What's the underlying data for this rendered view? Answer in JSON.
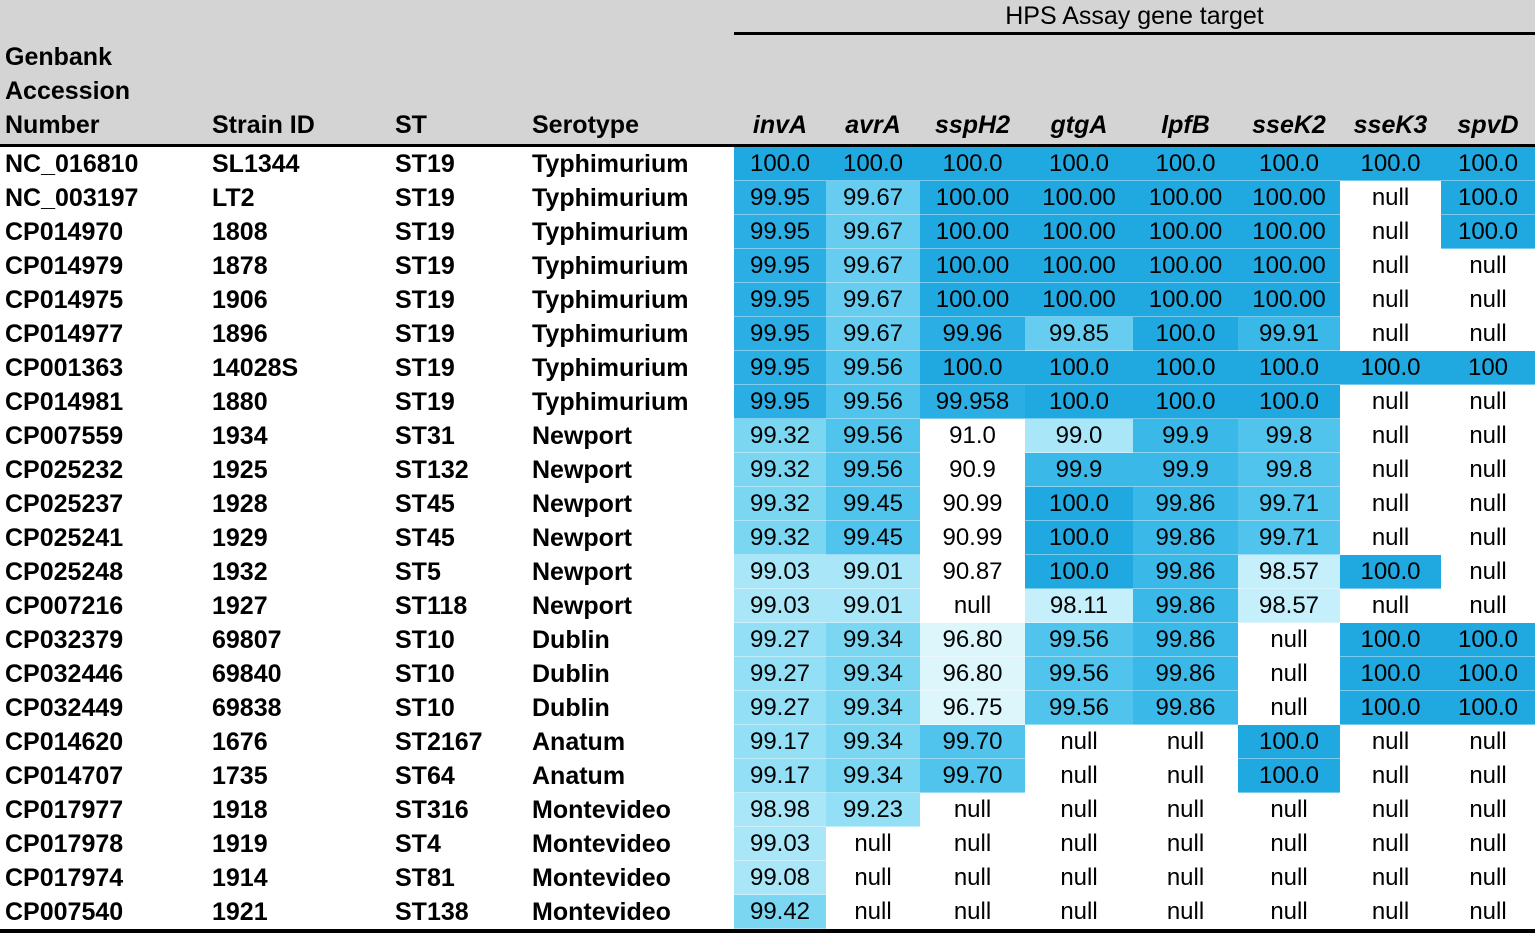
{
  "title": "HPS Assay gene target",
  "columns": {
    "accession": "Genbank Accession Number",
    "strain": "Strain ID",
    "st": "ST",
    "serotype": "Serotype"
  },
  "gene_targets": [
    "invA",
    "avrA",
    "sspH2",
    "gtgA",
    "lpfB",
    "sseK2",
    "sseK3",
    "spvD"
  ],
  "heatmap_palette": {
    "w": "#FFFFFF",
    "c1": "#DDF6FC",
    "c2": "#C4EFFB",
    "c3": "#A9E6F8",
    "c4": "#93DFF5",
    "c5": "#7BD6F2",
    "c6": "#67CDF0",
    "c7": "#50C4EC",
    "c8": "#3AB8E8",
    "c9": "#2BAEE4",
    "c10": "#20A8E1"
  },
  "header_bg": "#D4D4D4",
  "rows": [
    {
      "accession": "NC_016810",
      "strain": "SL1344",
      "st": "ST19",
      "serotype": "Typhimurium",
      "values": [
        [
          "100.0",
          "c10"
        ],
        [
          "100.0",
          "c10"
        ],
        [
          "100.0",
          "c10"
        ],
        [
          "100.0",
          "c10"
        ],
        [
          "100.0",
          "c10"
        ],
        [
          "100.0",
          "c10"
        ],
        [
          "100.0",
          "c10"
        ],
        [
          "100.0",
          "c10"
        ]
      ]
    },
    {
      "accession": "NC_003197",
      "strain": "LT2",
      "st": "ST19",
      "serotype": "Typhimurium",
      "values": [
        [
          "99.95",
          "c9"
        ],
        [
          "99.67",
          "c6"
        ],
        [
          "100.00",
          "c10"
        ],
        [
          "100.00",
          "c10"
        ],
        [
          "100.00",
          "c10"
        ],
        [
          "100.00",
          "c10"
        ],
        [
          "null",
          "w"
        ],
        [
          "100.0",
          "c10"
        ]
      ]
    },
    {
      "accession": "CP014970",
      "strain": "1808",
      "st": "ST19",
      "serotype": "Typhimurium",
      "values": [
        [
          "99.95",
          "c9"
        ],
        [
          "99.67",
          "c6"
        ],
        [
          "100.00",
          "c10"
        ],
        [
          "100.00",
          "c10"
        ],
        [
          "100.00",
          "c10"
        ],
        [
          "100.00",
          "c10"
        ],
        [
          "null",
          "w"
        ],
        [
          "100.0",
          "c10"
        ]
      ]
    },
    {
      "accession": "CP014979",
      "strain": "1878",
      "st": "ST19",
      "serotype": "Typhimurium",
      "values": [
        [
          "99.95",
          "c9"
        ],
        [
          "99.67",
          "c6"
        ],
        [
          "100.00",
          "c10"
        ],
        [
          "100.00",
          "c10"
        ],
        [
          "100.00",
          "c10"
        ],
        [
          "100.00",
          "c10"
        ],
        [
          "null",
          "w"
        ],
        [
          "null",
          "w"
        ]
      ]
    },
    {
      "accession": "CP014975",
      "strain": "1906",
      "st": "ST19",
      "serotype": "Typhimurium",
      "values": [
        [
          "99.95",
          "c9"
        ],
        [
          "99.67",
          "c6"
        ],
        [
          "100.00",
          "c10"
        ],
        [
          "100.00",
          "c10"
        ],
        [
          "100.00",
          "c10"
        ],
        [
          "100.00",
          "c10"
        ],
        [
          "null",
          "w"
        ],
        [
          "null",
          "w"
        ]
      ]
    },
    {
      "accession": "CP014977",
      "strain": "1896",
      "st": "ST19",
      "serotype": "Typhimurium",
      "values": [
        [
          "99.95",
          "c9"
        ],
        [
          "99.67",
          "c6"
        ],
        [
          "99.96",
          "c9"
        ],
        [
          "99.85",
          "c6"
        ],
        [
          "100.0",
          "c10"
        ],
        [
          "99.91",
          "c8"
        ],
        [
          "null",
          "w"
        ],
        [
          "null",
          "w"
        ]
      ]
    },
    {
      "accession": "CP001363",
      "strain": "14028S",
      "st": "ST19",
      "serotype": "Typhimurium",
      "values": [
        [
          "99.95",
          "c9"
        ],
        [
          "99.56",
          "c7"
        ],
        [
          "100.0",
          "c10"
        ],
        [
          "100.0",
          "c10"
        ],
        [
          "100.0",
          "c10"
        ],
        [
          "100.0",
          "c10"
        ],
        [
          "100.0",
          "c10"
        ],
        [
          "100",
          "c10"
        ]
      ]
    },
    {
      "accession": "CP014981",
      "strain": "1880",
      "st": "ST19",
      "serotype": "Typhimurium",
      "values": [
        [
          "99.95",
          "c9"
        ],
        [
          "99.56",
          "c7"
        ],
        [
          "99.958",
          "c9"
        ],
        [
          "100.0",
          "c10"
        ],
        [
          "100.0",
          "c10"
        ],
        [
          "100.0",
          "c10"
        ],
        [
          "null",
          "w"
        ],
        [
          "null",
          "w"
        ]
      ]
    },
    {
      "accession": "CP007559",
      "strain": "1934",
      "st": "ST31",
      "serotype": "Newport",
      "values": [
        [
          "99.32",
          "c5"
        ],
        [
          "99.56",
          "c7"
        ],
        [
          "91.0",
          "w"
        ],
        [
          "99.0",
          "c3"
        ],
        [
          "99.9",
          "c8"
        ],
        [
          "99.8",
          "c7"
        ],
        [
          "null",
          "w"
        ],
        [
          "null",
          "w"
        ]
      ]
    },
    {
      "accession": "CP025232",
      "strain": "1925",
      "st": "ST132",
      "serotype": "Newport",
      "values": [
        [
          "99.32",
          "c5"
        ],
        [
          "99.56",
          "c7"
        ],
        [
          "90.9",
          "w"
        ],
        [
          "99.9",
          "c8"
        ],
        [
          "99.9",
          "c8"
        ],
        [
          "99.8",
          "c7"
        ],
        [
          "null",
          "w"
        ],
        [
          "null",
          "w"
        ]
      ]
    },
    {
      "accession": "CP025237",
      "strain": "1928",
      "st": "ST45",
      "serotype": "Newport",
      "values": [
        [
          "99.32",
          "c5"
        ],
        [
          "99.45",
          "c7"
        ],
        [
          "90.99",
          "w"
        ],
        [
          "100.0",
          "c10"
        ],
        [
          "99.86",
          "c8"
        ],
        [
          "99.71",
          "c7"
        ],
        [
          "null",
          "w"
        ],
        [
          "null",
          "w"
        ]
      ]
    },
    {
      "accession": "CP025241",
      "strain": "1929",
      "st": "ST45",
      "serotype": "Newport",
      "values": [
        [
          "99.32",
          "c5"
        ],
        [
          "99.45",
          "c7"
        ],
        [
          "90.99",
          "w"
        ],
        [
          "100.0",
          "c10"
        ],
        [
          "99.86",
          "c8"
        ],
        [
          "99.71",
          "c7"
        ],
        [
          "null",
          "w"
        ],
        [
          "null",
          "w"
        ]
      ]
    },
    {
      "accession": "CP025248",
      "strain": "1932",
      "st": "ST5",
      "serotype": "Newport",
      "values": [
        [
          "99.03",
          "c3"
        ],
        [
          "99.01",
          "c3"
        ],
        [
          "90.87",
          "w"
        ],
        [
          "100.0",
          "c10"
        ],
        [
          "99.86",
          "c8"
        ],
        [
          "98.57",
          "c2"
        ],
        [
          "100.0",
          "c10"
        ],
        [
          "null",
          "w"
        ]
      ]
    },
    {
      "accession": "CP007216",
      "strain": "1927",
      "st": "ST118",
      "serotype": "Newport",
      "values": [
        [
          "99.03",
          "c3"
        ],
        [
          "99.01",
          "c3"
        ],
        [
          "null",
          "w"
        ],
        [
          "98.11",
          "c2"
        ],
        [
          "99.86",
          "c8"
        ],
        [
          "98.57",
          "c2"
        ],
        [
          "null",
          "w"
        ],
        [
          "null",
          "w"
        ]
      ]
    },
    {
      "accession": "CP032379",
      "strain": "69807",
      "st": "ST10",
      "serotype": "Dublin",
      "values": [
        [
          "99.27",
          "c4"
        ],
        [
          "99.34",
          "c5"
        ],
        [
          "96.80",
          "c1"
        ],
        [
          "99.56",
          "c7"
        ],
        [
          "99.86",
          "c8"
        ],
        [
          "null",
          "w"
        ],
        [
          "100.0",
          "c10"
        ],
        [
          "100.0",
          "c10"
        ]
      ]
    },
    {
      "accession": "CP032446",
      "strain": "69840",
      "st": "ST10",
      "serotype": "Dublin",
      "values": [
        [
          "99.27",
          "c4"
        ],
        [
          "99.34",
          "c5"
        ],
        [
          "96.80",
          "c1"
        ],
        [
          "99.56",
          "c7"
        ],
        [
          "99.86",
          "c8"
        ],
        [
          "null",
          "w"
        ],
        [
          "100.0",
          "c10"
        ],
        [
          "100.0",
          "c10"
        ]
      ]
    },
    {
      "accession": "CP032449",
      "strain": "69838",
      "st": "ST10",
      "serotype": "Dublin",
      "values": [
        [
          "99.27",
          "c4"
        ],
        [
          "99.34",
          "c5"
        ],
        [
          "96.75",
          "c1"
        ],
        [
          "99.56",
          "c7"
        ],
        [
          "99.86",
          "c8"
        ],
        [
          "null",
          "w"
        ],
        [
          "100.0",
          "c10"
        ],
        [
          "100.0",
          "c10"
        ]
      ]
    },
    {
      "accession": "CP014620",
      "strain": "1676",
      "st": "ST2167",
      "serotype": "Anatum",
      "values": [
        [
          "99.17",
          "c4"
        ],
        [
          "99.34",
          "c5"
        ],
        [
          "99.70",
          "c7"
        ],
        [
          "null",
          "w"
        ],
        [
          "null",
          "w"
        ],
        [
          "100.0",
          "c10"
        ],
        [
          "null",
          "w"
        ],
        [
          "null",
          "w"
        ]
      ]
    },
    {
      "accession": "CP014707",
      "strain": "1735",
      "st": "ST64",
      "serotype": "Anatum",
      "values": [
        [
          "99.17",
          "c4"
        ],
        [
          "99.34",
          "c5"
        ],
        [
          "99.70",
          "c7"
        ],
        [
          "null",
          "w"
        ],
        [
          "null",
          "w"
        ],
        [
          "100.0",
          "c10"
        ],
        [
          "null",
          "w"
        ],
        [
          "null",
          "w"
        ]
      ]
    },
    {
      "accession": "CP017977",
      "strain": "1918",
      "st": "ST316",
      "serotype": "Montevideo",
      "values": [
        [
          "98.98",
          "c3"
        ],
        [
          "99.23",
          "c4"
        ],
        [
          "null",
          "w"
        ],
        [
          "null",
          "w"
        ],
        [
          "null",
          "w"
        ],
        [
          "null",
          "w"
        ],
        [
          "null",
          "w"
        ],
        [
          "null",
          "w"
        ]
      ]
    },
    {
      "accession": "CP017978",
      "strain": "1919",
      "st": "ST4",
      "serotype": "Montevideo",
      "values": [
        [
          "99.03",
          "c3"
        ],
        [
          "null",
          "w"
        ],
        [
          "null",
          "w"
        ],
        [
          "null",
          "w"
        ],
        [
          "null",
          "w"
        ],
        [
          "null",
          "w"
        ],
        [
          "null",
          "w"
        ],
        [
          "null",
          "w"
        ]
      ]
    },
    {
      "accession": "CP017974",
      "strain": "1914",
      "st": "ST81",
      "serotype": "Montevideo",
      "values": [
        [
          "99.08",
          "c3"
        ],
        [
          "null",
          "w"
        ],
        [
          "null",
          "w"
        ],
        [
          "null",
          "w"
        ],
        [
          "null",
          "w"
        ],
        [
          "null",
          "w"
        ],
        [
          "null",
          "w"
        ],
        [
          "null",
          "w"
        ]
      ]
    },
    {
      "accession": "CP007540",
      "strain": "1921",
      "st": "ST138",
      "serotype": "Montevideo",
      "values": [
        [
          "99.42",
          "c5"
        ],
        [
          "null",
          "w"
        ],
        [
          "null",
          "w"
        ],
        [
          "null",
          "w"
        ],
        [
          "null",
          "w"
        ],
        [
          "null",
          "w"
        ],
        [
          "null",
          "w"
        ],
        [
          "null",
          "w"
        ]
      ]
    }
  ]
}
